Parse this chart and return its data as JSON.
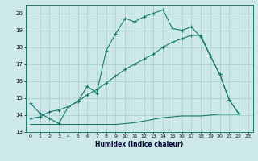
{
  "xlabel": "Humidex (Indice chaleur)",
  "background_color": "#cce8e8",
  "grid_color": "#aacccc",
  "line_color": "#1a7a6e",
  "xlim": [
    -0.5,
    23.5
  ],
  "ylim": [
    13,
    20.5
  ],
  "yticks": [
    13,
    14,
    15,
    16,
    17,
    18,
    19,
    20
  ],
  "xticks": [
    0,
    1,
    2,
    3,
    4,
    5,
    6,
    7,
    8,
    9,
    10,
    11,
    12,
    13,
    14,
    15,
    16,
    17,
    18,
    19,
    20,
    21,
    22,
    23
  ],
  "line1_y": [
    14.7,
    14.1,
    13.8,
    13.5,
    14.5,
    14.8,
    15.7,
    15.3,
    17.8,
    18.8,
    19.7,
    19.5,
    19.8,
    20.0,
    20.2,
    19.1,
    19.0,
    19.2,
    18.6,
    17.5,
    16.4,
    14.9,
    14.1,
    null
  ],
  "line2_y": [
    13.45,
    13.45,
    13.45,
    13.45,
    13.45,
    13.45,
    13.45,
    13.45,
    13.45,
    13.45,
    13.5,
    13.55,
    13.65,
    13.75,
    13.85,
    13.9,
    13.95,
    13.95,
    13.95,
    14.0,
    14.05,
    14.05,
    14.05,
    null
  ],
  "line3_y": [
    13.8,
    13.9,
    14.2,
    14.3,
    14.5,
    14.8,
    15.2,
    15.5,
    15.9,
    16.3,
    16.7,
    17.0,
    17.3,
    17.6,
    18.0,
    18.3,
    18.5,
    18.7,
    18.7,
    17.5,
    16.4,
    14.9,
    14.1,
    null
  ]
}
